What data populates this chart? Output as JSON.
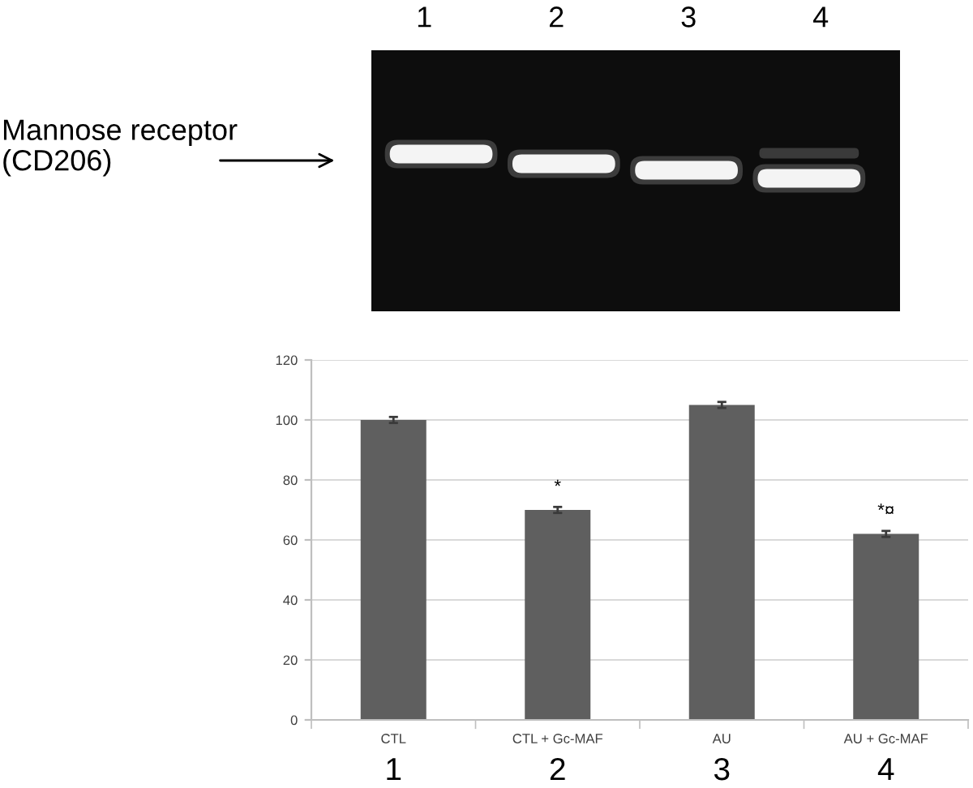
{
  "chart_data": {
    "type": "bar",
    "categories": [
      "CTL",
      "CTL + Gc-MAF",
      "AU",
      "AU + Gc-MAF"
    ],
    "values": [
      100,
      70,
      105,
      62
    ],
    "errors": [
      1,
      1,
      1,
      1
    ],
    "color": "#5f5f5f",
    "ylim": [
      0,
      120
    ],
    "yticks": [
      0,
      20,
      40,
      60,
      80,
      100,
      120
    ],
    "grid": "y",
    "annotations": [
      "1",
      "2",
      "3",
      "4",
      "Mannose receptor\n(CD206)",
      "1",
      "2",
      "3",
      "4",
      {
        "text": "*",
        "x": "CTL + Gc-MAF",
        "y": 70
      },
      {
        "text": "*¤",
        "x": "AU + Gc-MAF",
        "y": 62
      }
    ]
  }
}
